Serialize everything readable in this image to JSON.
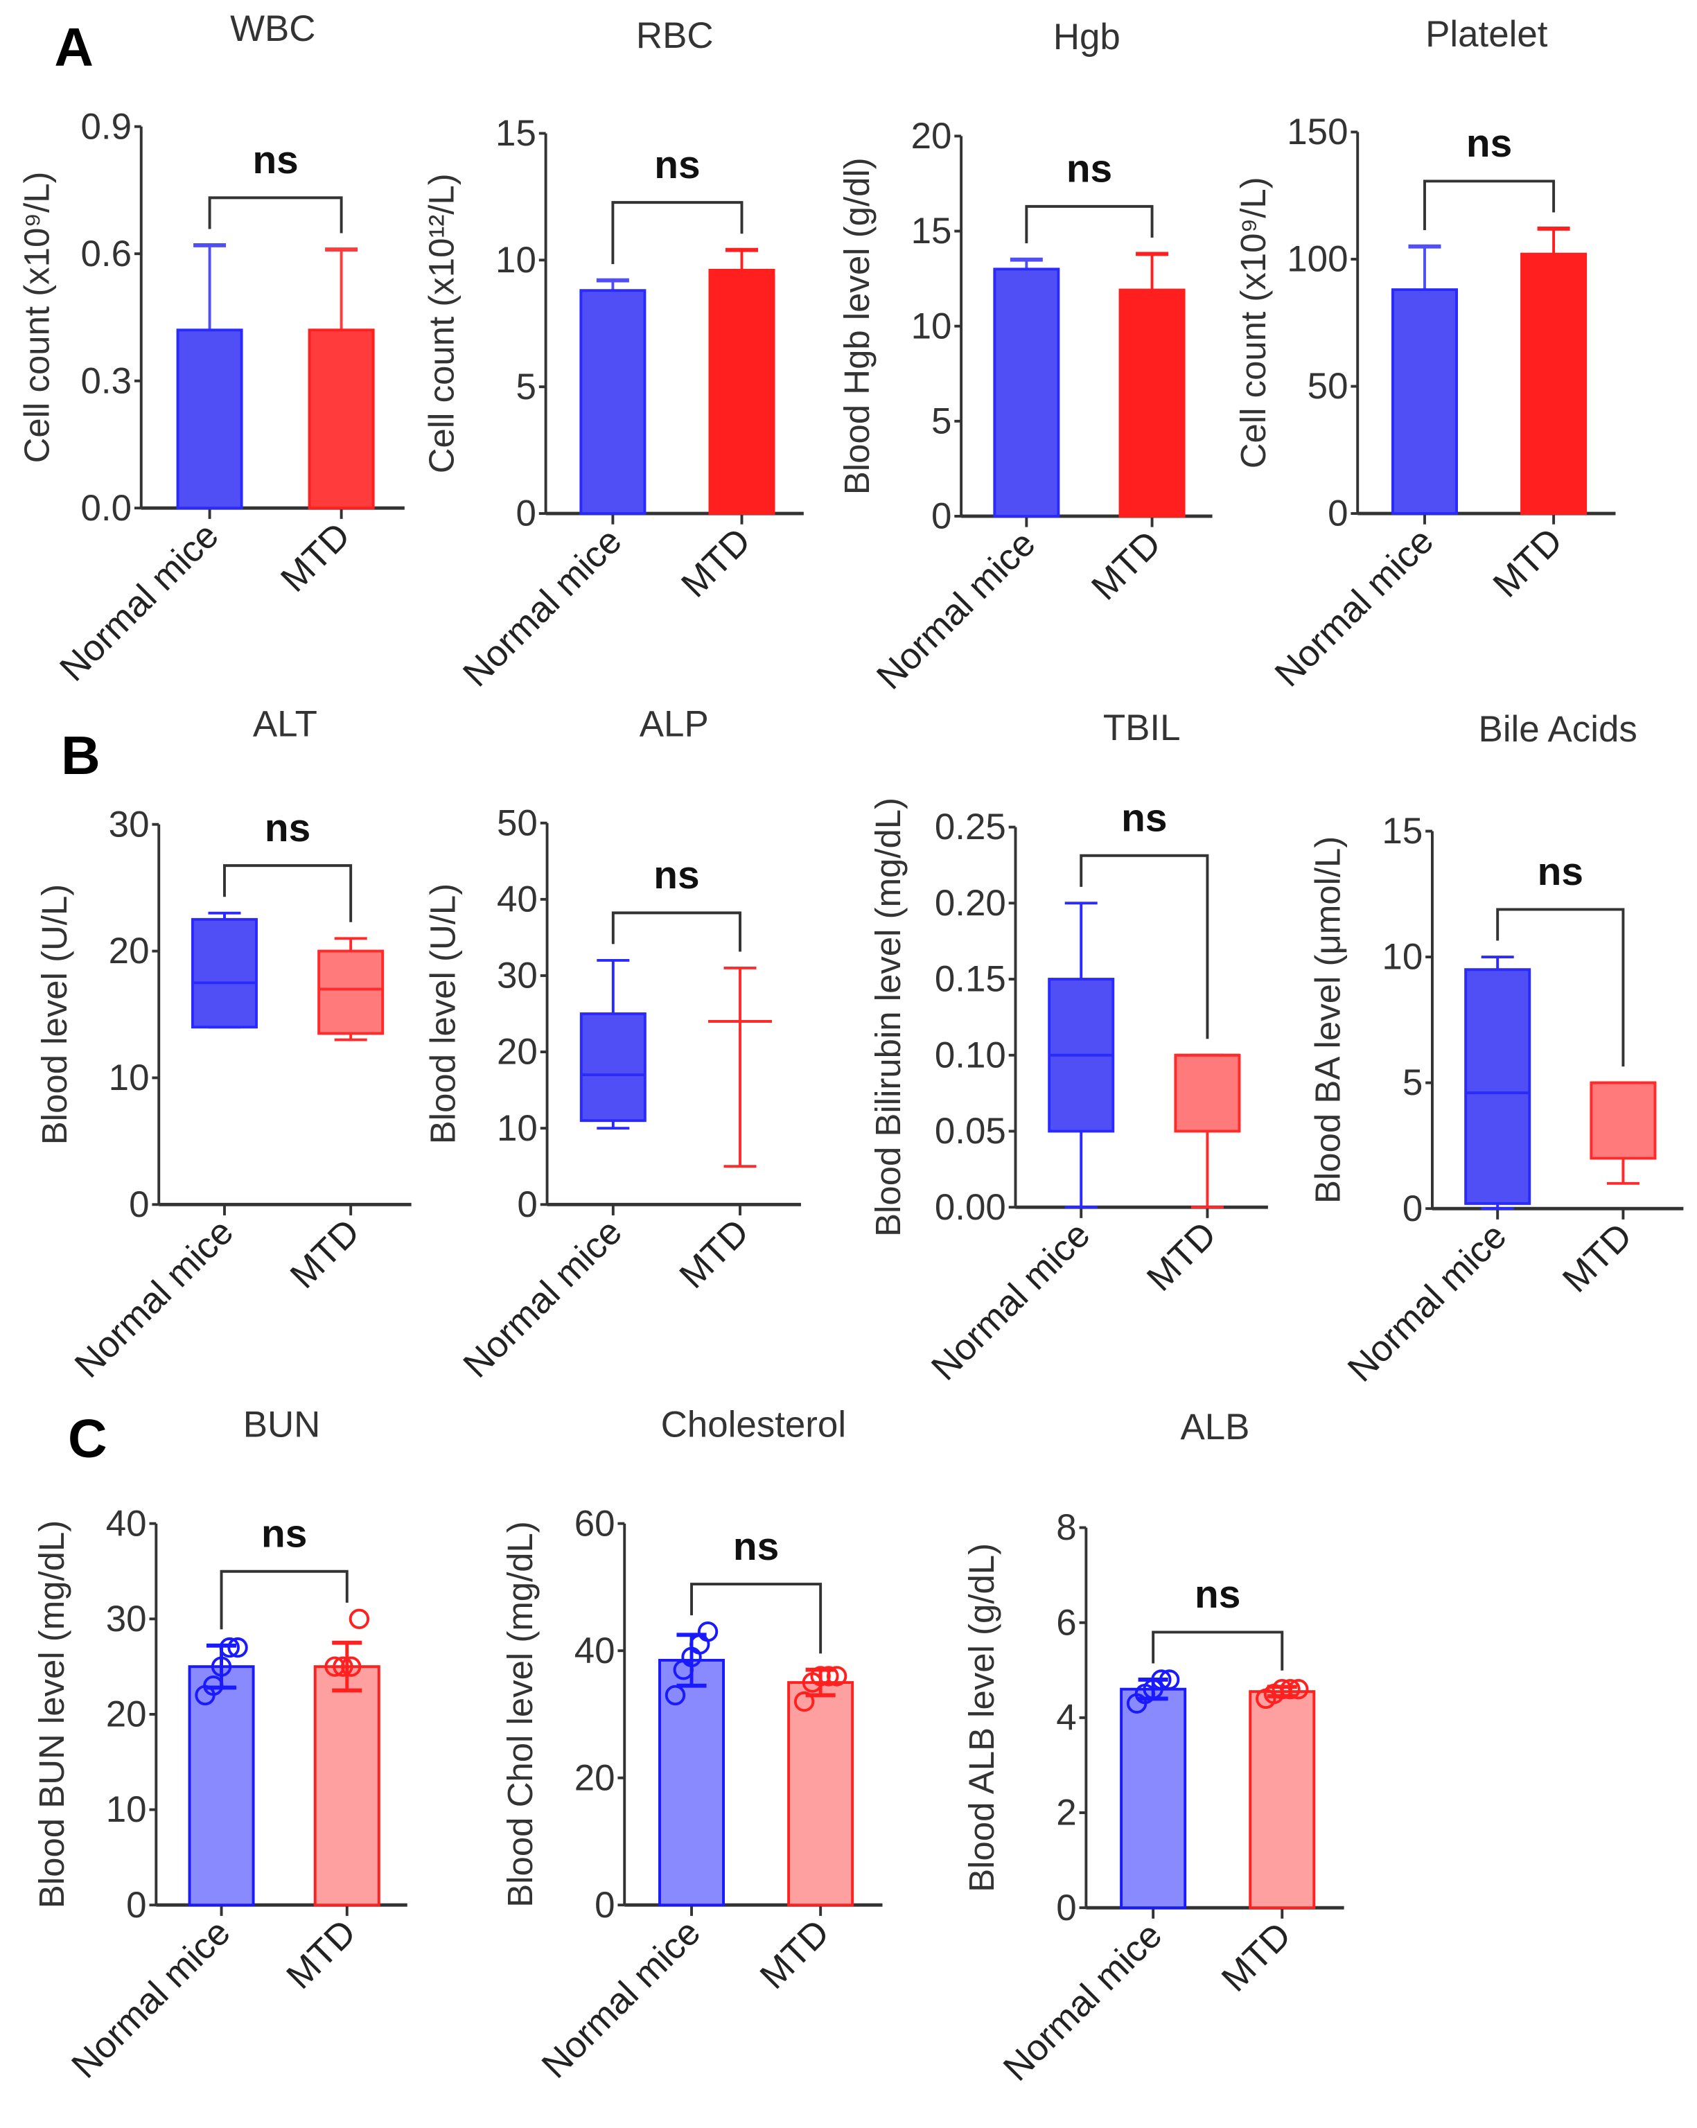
{
  "panel_letters": [
    "A",
    "B",
    "C"
  ],
  "chart_data": [
    {
      "type": "bar",
      "panel": "A",
      "title": "WBC",
      "ylabel": "Cell count (x10⁹/L)",
      "categories": [
        "Normal mice",
        "MTD"
      ],
      "ylim": [
        0,
        0.9
      ],
      "yticks": [
        "0.0",
        "0.3",
        "0.6",
        "0.9"
      ],
      "ytick_values": [
        0,
        0.3,
        0.6,
        0.9
      ],
      "values": [
        0.42,
        0.42
      ],
      "err_upper": [
        0.62,
        0.61
      ],
      "significance": "ns",
      "colors": [
        "#4f4ff5",
        "#ff3b3b"
      ]
    },
    {
      "type": "bar",
      "panel": "A",
      "title": "RBC",
      "ylabel": "Cell count (x10¹²/L)",
      "categories": [
        "Normal mice",
        "MTD"
      ],
      "ylim": [
        0,
        15
      ],
      "yticks": [
        "0",
        "5",
        "10",
        "15"
      ],
      "ytick_values": [
        0,
        5,
        10,
        15
      ],
      "values": [
        8.8,
        9.6
      ],
      "err_upper": [
        9.2,
        10.4
      ],
      "significance": "ns",
      "colors": [
        "#4f4ff5",
        "#ff1f1f"
      ]
    },
    {
      "type": "bar",
      "panel": "A",
      "title": "Hgb",
      "ylabel": "Blood Hgb level (g/dl)",
      "categories": [
        "Normal mice",
        "MTD"
      ],
      "ylim": [
        0,
        20
      ],
      "yticks": [
        "0",
        "5",
        "10",
        "15",
        "20"
      ],
      "ytick_values": [
        0,
        5,
        10,
        15,
        20
      ],
      "values": [
        13.0,
        11.9
      ],
      "err_upper": [
        13.5,
        13.8
      ],
      "significance": "ns",
      "colors": [
        "#4f4ff5",
        "#ff1f1f"
      ]
    },
    {
      "type": "bar",
      "panel": "A",
      "title": "Platelet",
      "ylabel": "Cell count (x10⁹/L)",
      "categories": [
        "Normal mice",
        "MTD"
      ],
      "ylim": [
        0,
        150
      ],
      "yticks": [
        "0",
        "50",
        "100",
        "150"
      ],
      "ytick_values": [
        0,
        50,
        100,
        150
      ],
      "values": [
        88,
        102
      ],
      "err_upper": [
        105,
        112
      ],
      "significance": "ns",
      "colors": [
        "#4f4ff5",
        "#ff1f1f"
      ]
    },
    {
      "type": "box",
      "panel": "B",
      "title": "ALT",
      "ylabel": "Blood level (U/L)",
      "categories": [
        "Normal mice",
        "MTD"
      ],
      "ylim": [
        0,
        30
      ],
      "yticks": [
        "0",
        "10",
        "20",
        "30"
      ],
      "ytick_values": [
        0,
        10,
        20,
        30
      ],
      "boxes": [
        {
          "min": 14,
          "q1": 14,
          "median": 17.5,
          "q3": 22.5,
          "max": 23
        },
        {
          "min": 13,
          "q1": 13.5,
          "median": 17,
          "q3": 20,
          "max": 21
        }
      ],
      "significance": "ns",
      "colors": [
        "#4f4ff5",
        "#ff7b7b"
      ]
    },
    {
      "type": "box",
      "panel": "B",
      "title": "ALP",
      "ylabel": "Blood level (U/L)",
      "categories": [
        "Normal mice",
        "MTD"
      ],
      "ylim": [
        0,
        50
      ],
      "yticks": [
        "0",
        "10",
        "20",
        "30",
        "40",
        "50"
      ],
      "ytick_values": [
        0,
        10,
        20,
        30,
        40,
        50
      ],
      "boxes": [
        {
          "min": 10,
          "q1": 11,
          "median": 17,
          "q3": 25,
          "max": 32
        },
        {
          "min": 5,
          "q1": 24,
          "median": 24,
          "q3": 24,
          "max": 31
        }
      ],
      "significance": "ns",
      "colors": [
        "#4f4ff5",
        "#ff7b7b"
      ]
    },
    {
      "type": "box",
      "panel": "B",
      "title": "TBIL",
      "ylabel": "Blood Bilirubin level (mg/dL)",
      "categories": [
        "Normal mice",
        "MTD"
      ],
      "ylim": [
        0,
        0.25
      ],
      "yticks": [
        "0.00",
        "0.05",
        "0.10",
        "0.15",
        "0.20",
        "0.25"
      ],
      "ytick_values": [
        0,
        0.05,
        0.1,
        0.15,
        0.2,
        0.25
      ],
      "boxes": [
        {
          "min": 0,
          "q1": 0.05,
          "median": 0.1,
          "q3": 0.15,
          "max": 0.2
        },
        {
          "min": 0,
          "q1": 0.05,
          "median": 0.1,
          "q3": 0.1,
          "max": 0.1
        }
      ],
      "significance": "ns",
      "colors": [
        "#4f4ff5",
        "#ff7b7b"
      ]
    },
    {
      "type": "box",
      "panel": "B",
      "title": "Bile Acids",
      "ylabel": "Blood BA level (μmol/L)",
      "categories": [
        "Normal mice",
        "MTD"
      ],
      "ylim": [
        0,
        15
      ],
      "yticks": [
        "0",
        "5",
        "10",
        "15"
      ],
      "ytick_values": [
        0,
        5,
        10,
        15
      ],
      "boxes": [
        {
          "min": 0,
          "q1": 0.2,
          "median": 4.6,
          "q3": 9.5,
          "max": 10
        },
        {
          "min": 1,
          "q1": 2,
          "median": 5,
          "q3": 5,
          "max": 5
        }
      ],
      "significance": "ns",
      "colors": [
        "#4f4ff5",
        "#ff7b7b"
      ]
    },
    {
      "type": "bar_scatter",
      "panel": "C",
      "title": "BUN",
      "ylabel": "Blood BUN level (mg/dL)",
      "categories": [
        "Normal mice",
        "MTD"
      ],
      "ylim": [
        0,
        40
      ],
      "yticks": [
        "0",
        "10",
        "20",
        "30",
        "40"
      ],
      "ytick_values": [
        0,
        10,
        20,
        30,
        40
      ],
      "values": [
        25,
        25
      ],
      "err": [
        2.2,
        2.5
      ],
      "points": [
        [
          22,
          23,
          25,
          27,
          27
        ],
        [
          25,
          25,
          25,
          30
        ]
      ],
      "significance": "ns",
      "colors": [
        "#8a8aff",
        "#ffa0a0"
      ],
      "edge_colors": [
        "#1a1aff",
        "#ff2020"
      ]
    },
    {
      "type": "bar_scatter",
      "panel": "C",
      "title": "Cholesterol",
      "ylabel": "Blood Chol level (mg/dL)",
      "categories": [
        "Normal mice",
        "MTD"
      ],
      "ylim": [
        0,
        60
      ],
      "yticks": [
        "0",
        "20",
        "40",
        "60"
      ],
      "ytick_values": [
        0,
        20,
        40,
        60
      ],
      "values": [
        38.5,
        35
      ],
      "err": [
        4,
        2
      ],
      "points": [
        [
          33,
          37,
          39,
          41,
          43
        ],
        [
          32,
          35,
          36,
          36,
          36
        ]
      ],
      "significance": "ns",
      "colors": [
        "#8a8aff",
        "#ffa0a0"
      ],
      "edge_colors": [
        "#1a1aff",
        "#ff2020"
      ]
    },
    {
      "type": "bar_scatter",
      "panel": "C",
      "title": "ALB",
      "ylabel": "Blood ALB level (g/dL)",
      "categories": [
        "Normal mice",
        "MTD"
      ],
      "ylim": [
        0,
        8
      ],
      "yticks": [
        "0",
        "2",
        "4",
        "6",
        "8"
      ],
      "ytick_values": [
        0,
        2,
        4,
        6,
        8
      ],
      "values": [
        4.6,
        4.55
      ],
      "err": [
        0.2,
        0.1
      ],
      "points": [
        [
          4.3,
          4.5,
          4.6,
          4.8,
          4.8
        ],
        [
          4.4,
          4.5,
          4.6,
          4.6,
          4.6
        ]
      ],
      "significance": "ns",
      "colors": [
        "#8a8aff",
        "#ffa0a0"
      ],
      "edge_colors": [
        "#1a1aff",
        "#ff2020"
      ]
    }
  ]
}
